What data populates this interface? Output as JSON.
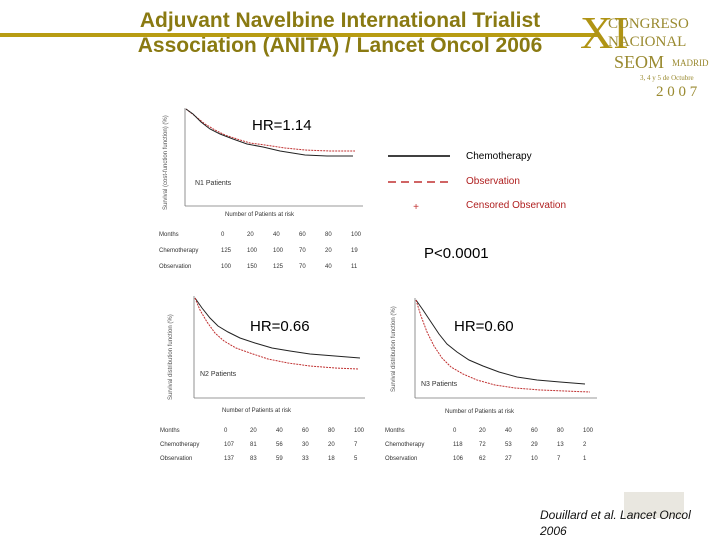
{
  "header": {
    "title_line1": "Adjuvant Navelbine International Trialist",
    "title_line2": "Association (ANITA) / Lancet Oncol 2006"
  },
  "logo": {
    "roman": "XI",
    "congreso": "CONGRESO",
    "nacional": "NACIONAL",
    "seom": "SEOM",
    "madrid": "MADRID",
    "dates": "3, 4 y 5 de Octubre",
    "year": "2 0 0 7"
  },
  "legend": {
    "chemo": "Chemotherapy",
    "obs": "Observation",
    "censored": "Censored Observation"
  },
  "stats": {
    "hr_top": "HR=1.14",
    "hr_left": "HR=0.66",
    "hr_right": "HR=0.60",
    "p_value": "P<0.0001"
  },
  "panels": {
    "top": {
      "ylabel": "Survival (cost-function function) (%)",
      "n_label": "N1 Patients",
      "risk_title": "Number of Patients at risk",
      "rows": [
        {
          "label": "Months",
          "values": [
            "0",
            "20",
            "40",
            "60",
            "80",
            "100"
          ]
        },
        {
          "label": "Chemotherapy",
          "values": [
            "125",
            "100",
            "100",
            "70",
            "20",
            "19"
          ]
        },
        {
          "label": "Observation",
          "values": [
            "100",
            "150",
            "125",
            "70",
            "40",
            "11"
          ]
        }
      ]
    },
    "left": {
      "ylabel": "Survival distribution function (%)",
      "n_label": "N2 Patients",
      "risk_title": "Number of Patients at risk",
      "rows": [
        {
          "label": "Months",
          "values": [
            "0",
            "20",
            "40",
            "60",
            "80",
            "100"
          ]
        },
        {
          "label": "Chemotherapy",
          "values": [
            "107",
            "81",
            "56",
            "30",
            "20",
            "7"
          ]
        },
        {
          "label": "Observation",
          "values": [
            "137",
            "83",
            "59",
            "33",
            "18",
            "5"
          ]
        }
      ]
    },
    "right": {
      "ylabel": "Survival distribution function (%)",
      "n_label": "N3 Patients",
      "risk_title": "Number of Patients at risk",
      "rows": [
        {
          "label": "Months",
          "values": [
            "0",
            "20",
            "40",
            "60",
            "80",
            "100"
          ]
        },
        {
          "label": "Chemotherapy",
          "values": [
            "118",
            "72",
            "53",
            "29",
            "13",
            "2"
          ]
        },
        {
          "label": "Observation",
          "values": [
            "106",
            "62",
            "27",
            "10",
            "7",
            "1"
          ]
        }
      ]
    }
  },
  "citation": "Douillard et al. Lancet Oncol 2006",
  "colors": {
    "gold": "#b89c12",
    "title": "#8a7a12",
    "observation": "#c03030",
    "chemotherapy": "#000000"
  }
}
